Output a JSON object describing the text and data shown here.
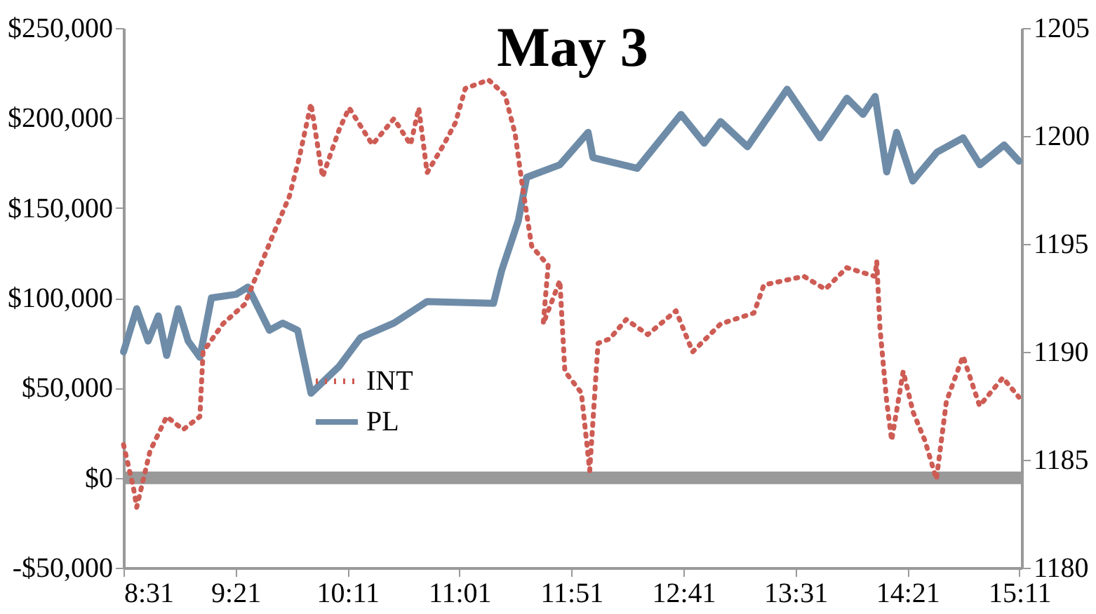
{
  "chart_data": {
    "type": "line",
    "title": "May 3",
    "xlim": [
      8.5167,
      15.2
    ],
    "xticks": [
      {
        "value": 8.5167,
        "label": "8:31"
      },
      {
        "value": 9.35,
        "label": "9:21"
      },
      {
        "value": 10.1833,
        "label": "10:11"
      },
      {
        "value": 11.0167,
        "label": "11:01"
      },
      {
        "value": 11.85,
        "label": "11:51"
      },
      {
        "value": 12.6833,
        "label": "12:41"
      },
      {
        "value": 13.5167,
        "label": "13:31"
      },
      {
        "value": 14.35,
        "label": "14:21"
      },
      {
        "value": 15.1833,
        "label": "15:11"
      }
    ],
    "ylim": [
      -50000,
      250000
    ],
    "yticks": [
      {
        "value": -50000,
        "label": "-$50,000"
      },
      {
        "value": 0,
        "label": "$0"
      },
      {
        "value": 50000,
        "label": "$50,000"
      },
      {
        "value": 100000,
        "label": "$100,000"
      },
      {
        "value": 150000,
        "label": "$150,000"
      },
      {
        "value": 200000,
        "label": "$200,000"
      },
      {
        "value": 250000,
        "label": "$250,000"
      }
    ],
    "y2lim": [
      1180,
      1205
    ],
    "y2ticks": [
      1180,
      1185,
      1190,
      1195,
      1200,
      1205
    ],
    "grid": false,
    "legend": "bottom",
    "ref_lines": [
      {
        "axis": "y",
        "value": 0,
        "color": "#999999"
      }
    ],
    "series": [
      {
        "name": "INT",
        "color": "#cd5c54",
        "axis": "y2",
        "line_style": "dotted",
        "x": [
          8.517,
          8.591,
          8.615,
          8.714,
          8.838,
          8.961,
          9.085,
          9.109,
          9.257,
          9.418,
          9.504,
          9.628,
          9.751,
          9.825,
          9.912,
          9.998,
          10.122,
          10.196,
          10.369,
          10.529,
          10.653,
          10.714,
          10.776,
          10.9,
          10.986,
          11.06,
          11.233,
          11.356,
          11.431,
          11.48,
          11.554,
          11.677,
          11.64,
          11.764,
          11.801,
          11.924,
          11.986,
          12.048,
          12.134,
          12.258,
          12.418,
          12.628,
          12.752,
          12.961,
          13.208,
          13.282,
          13.579,
          13.739,
          13.899,
          14.109,
          14.122,
          14.146,
          14.196,
          14.233,
          14.319,
          14.393,
          14.48,
          14.566,
          14.64,
          14.764,
          14.887,
          15.06,
          15.18
        ],
        "values": [
          1185.7,
          1183.7,
          1182.8,
          1185.4,
          1187.0,
          1186.4,
          1187.0,
          1190.0,
          1191.3,
          1192.2,
          1193.5,
          1195.4,
          1197.2,
          1199.0,
          1201.5,
          1198.1,
          1200.3,
          1201.3,
          1199.6,
          1200.8,
          1199.6,
          1201.3,
          1198.3,
          1199.6,
          1200.6,
          1202.2,
          1202.6,
          1201.9,
          1200.1,
          1197.9,
          1194.9,
          1194.0,
          1191.3,
          1193.3,
          1189.1,
          1188.1,
          1184.5,
          1190.4,
          1190.6,
          1191.5,
          1190.8,
          1191.9,
          1190.0,
          1191.3,
          1191.8,
          1193.1,
          1193.5,
          1192.9,
          1193.9,
          1193.5,
          1194.2,
          1191.1,
          1187.7,
          1185.9,
          1189.1,
          1187.2,
          1185.9,
          1184.1,
          1187.7,
          1189.8,
          1187.5,
          1188.8,
          1187.9
        ]
      },
      {
        "name": "PL",
        "color": "#6e8ca8",
        "line_style": "solid",
        "x": [
          8.517,
          8.615,
          8.7,
          8.776,
          8.838,
          8.924,
          8.998,
          9.085,
          9.171,
          9.356,
          9.443,
          9.603,
          9.702,
          9.813,
          9.912,
          10.122,
          10.282,
          10.53,
          10.776,
          11.27,
          11.33,
          11.455,
          11.517,
          11.764,
          11.974,
          12.01,
          12.34,
          12.665,
          12.838,
          12.96,
          13.16,
          13.455,
          13.7,
          13.9,
          14.02,
          14.11,
          14.196,
          14.27,
          14.39,
          14.57,
          14.765,
          14.89,
          15.07,
          15.18
        ],
        "values": [
          70000,
          94000,
          76000,
          90000,
          68000,
          94000,
          76000,
          67000,
          100000,
          102000,
          106000,
          82000,
          86000,
          82000,
          47000,
          62000,
          78000,
          86000,
          98000,
          97000,
          115000,
          143000,
          167000,
          174000,
          192000,
          178000,
          172000,
          202000,
          186000,
          198000,
          184000,
          216000,
          189000,
          211000,
          202000,
          212000,
          170000,
          192000,
          165000,
          181000,
          189000,
          174000,
          185000,
          176000
        ]
      }
    ]
  }
}
